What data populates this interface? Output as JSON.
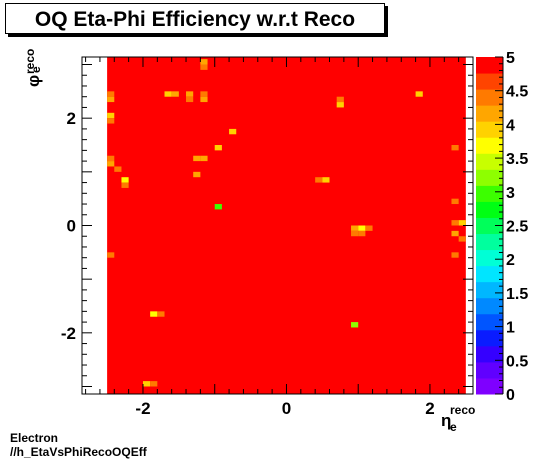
{
  "title": "OQ Eta-Phi Efficiency w.r.t Reco",
  "footer": {
    "line1": "Electron",
    "line2": "//h_EtaVsPhiRecoOQEff"
  },
  "chart_data": {
    "type": "heatmap",
    "title": "OQ Eta-Phi Efficiency w.r.t Reco",
    "xlabel": {
      "main": "η",
      "sup": "reco",
      "sub": "e"
    },
    "ylabel": {
      "main": "φ",
      "sup": "reco",
      "sub": "e"
    },
    "xlim": [
      -2.85,
      2.6
    ],
    "ylim": [
      -3.14,
      3.14
    ],
    "xticks": [
      -2,
      0,
      2
    ],
    "yticks": [
      -2,
      0,
      2
    ],
    "zlim": [
      0,
      5
    ],
    "zticks": [
      "0",
      "0.5",
      "1",
      "1.5",
      "2",
      "2.5",
      "3",
      "3.5",
      "4",
      "4.5",
      "5"
    ],
    "filled_eta_range": [
      -2.5,
      2.5
    ],
    "filled_phi_range": [
      -3.14,
      3.14
    ],
    "background_value": 5,
    "bin_size": {
      "eta": 0.1,
      "phi": 0.1
    },
    "cells": [
      {
        "eta": -1.15,
        "phi": 3.05,
        "value": 4.3
      },
      {
        "eta": -1.15,
        "phi": 2.95,
        "value": 4.5
      },
      {
        "eta": -1.65,
        "phi": 2.45,
        "value": 4.0
      },
      {
        "eta": -1.55,
        "phi": 2.45,
        "value": 4.3
      },
      {
        "eta": -1.35,
        "phi": 2.45,
        "value": 4.3
      },
      {
        "eta": -1.15,
        "phi": 2.45,
        "value": 4.5
      },
      {
        "eta": -1.35,
        "phi": 2.35,
        "value": 4.5
      },
      {
        "eta": -1.15,
        "phi": 2.35,
        "value": 4.3
      },
      {
        "eta": -2.45,
        "phi": 2.45,
        "value": 4.5
      },
      {
        "eta": -2.45,
        "phi": 2.35,
        "value": 4.3
      },
      {
        "eta": 0.75,
        "phi": 2.35,
        "value": 4.5
      },
      {
        "eta": 0.75,
        "phi": 2.25,
        "value": 3.9
      },
      {
        "eta": 1.85,
        "phi": 2.45,
        "value": 4.0
      },
      {
        "eta": -2.45,
        "phi": 2.05,
        "value": 3.9
      },
      {
        "eta": -2.45,
        "phi": 1.95,
        "value": 4.5
      },
      {
        "eta": -0.75,
        "phi": 1.75,
        "value": 3.9
      },
      {
        "eta": -0.95,
        "phi": 1.45,
        "value": 4.0
      },
      {
        "eta": -1.25,
        "phi": 1.25,
        "value": 4.3
      },
      {
        "eta": -1.15,
        "phi": 1.25,
        "value": 4.3
      },
      {
        "eta": 2.35,
        "phi": 1.45,
        "value": 4.5
      },
      {
        "eta": -2.45,
        "phi": 1.25,
        "value": 4.5
      },
      {
        "eta": -2.45,
        "phi": 1.15,
        "value": 4.3
      },
      {
        "eta": -2.35,
        "phi": 1.05,
        "value": 4.5
      },
      {
        "eta": -2.25,
        "phi": 0.85,
        "value": 3.7
      },
      {
        "eta": -2.25,
        "phi": 0.75,
        "value": 4.5
      },
      {
        "eta": -1.25,
        "phi": 0.95,
        "value": 4.3
      },
      {
        "eta": 0.45,
        "phi": 0.85,
        "value": 4.5
      },
      {
        "eta": 0.55,
        "phi": 0.85,
        "value": 4.0
      },
      {
        "eta": 2.35,
        "phi": 0.45,
        "value": 4.5
      },
      {
        "eta": -0.95,
        "phi": 0.35,
        "value": 3.0
      },
      {
        "eta": 2.45,
        "phi": 0.05,
        "value": 3.9
      },
      {
        "eta": 2.35,
        "phi": 0.05,
        "value": 4.5
      },
      {
        "eta": 0.95,
        "phi": -0.05,
        "value": 4.3
      },
      {
        "eta": 1.05,
        "phi": -0.05,
        "value": 3.7
      },
      {
        "eta": 1.15,
        "phi": -0.05,
        "value": 4.5
      },
      {
        "eta": 0.95,
        "phi": -0.15,
        "value": 4.5
      },
      {
        "eta": 1.05,
        "phi": -0.15,
        "value": 4.5
      },
      {
        "eta": 2.35,
        "phi": -0.15,
        "value": 4.3
      },
      {
        "eta": 2.45,
        "phi": -0.25,
        "value": 4.5
      },
      {
        "eta": -2.45,
        "phi": -0.55,
        "value": 4.5
      },
      {
        "eta": 2.35,
        "phi": -0.55,
        "value": 4.5
      },
      {
        "eta": -1.85,
        "phi": -1.65,
        "value": 3.7
      },
      {
        "eta": -1.75,
        "phi": -1.65,
        "value": 4.5
      },
      {
        "eta": 0.95,
        "phi": -1.85,
        "value": 3.2
      },
      {
        "eta": -1.95,
        "phi": -2.95,
        "value": 4.0
      },
      {
        "eta": -1.85,
        "phi": -2.95,
        "value": 4.5
      }
    ]
  }
}
